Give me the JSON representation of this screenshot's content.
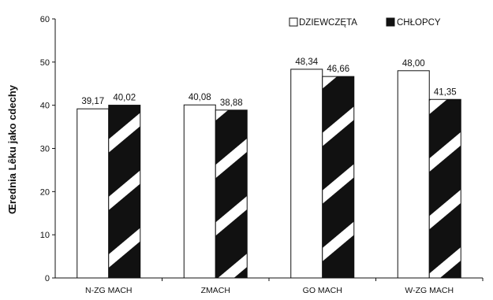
{
  "chart_data": {
    "type": "bar",
    "title": "",
    "ylabel": "Œrednia Lêku jako cdechy",
    "xlabel": "",
    "ylim": [
      0,
      60
    ],
    "yticks": [
      0,
      10,
      20,
      30,
      40,
      50,
      60
    ],
    "grid": false,
    "legend_position": "top-right",
    "categories": [
      "N-ZG MACH",
      "ZMACH",
      "GO MACH",
      "W-ZG MACH"
    ],
    "series": [
      {
        "name": "DZIEWCZĘTA",
        "values": [
          39.17,
          40.08,
          48.34,
          48.0
        ],
        "labels": [
          "39,17",
          "40,08",
          "48,34",
          "48,00"
        ],
        "fill": "#ffffff"
      },
      {
        "name": "CHŁOPCY",
        "values": [
          40.02,
          38.88,
          46.66,
          41.35
        ],
        "labels": [
          "40,02",
          "38,88",
          "46,66",
          "41,35"
        ],
        "fill": "#111111",
        "pattern": "diagonal-stripes"
      }
    ]
  }
}
